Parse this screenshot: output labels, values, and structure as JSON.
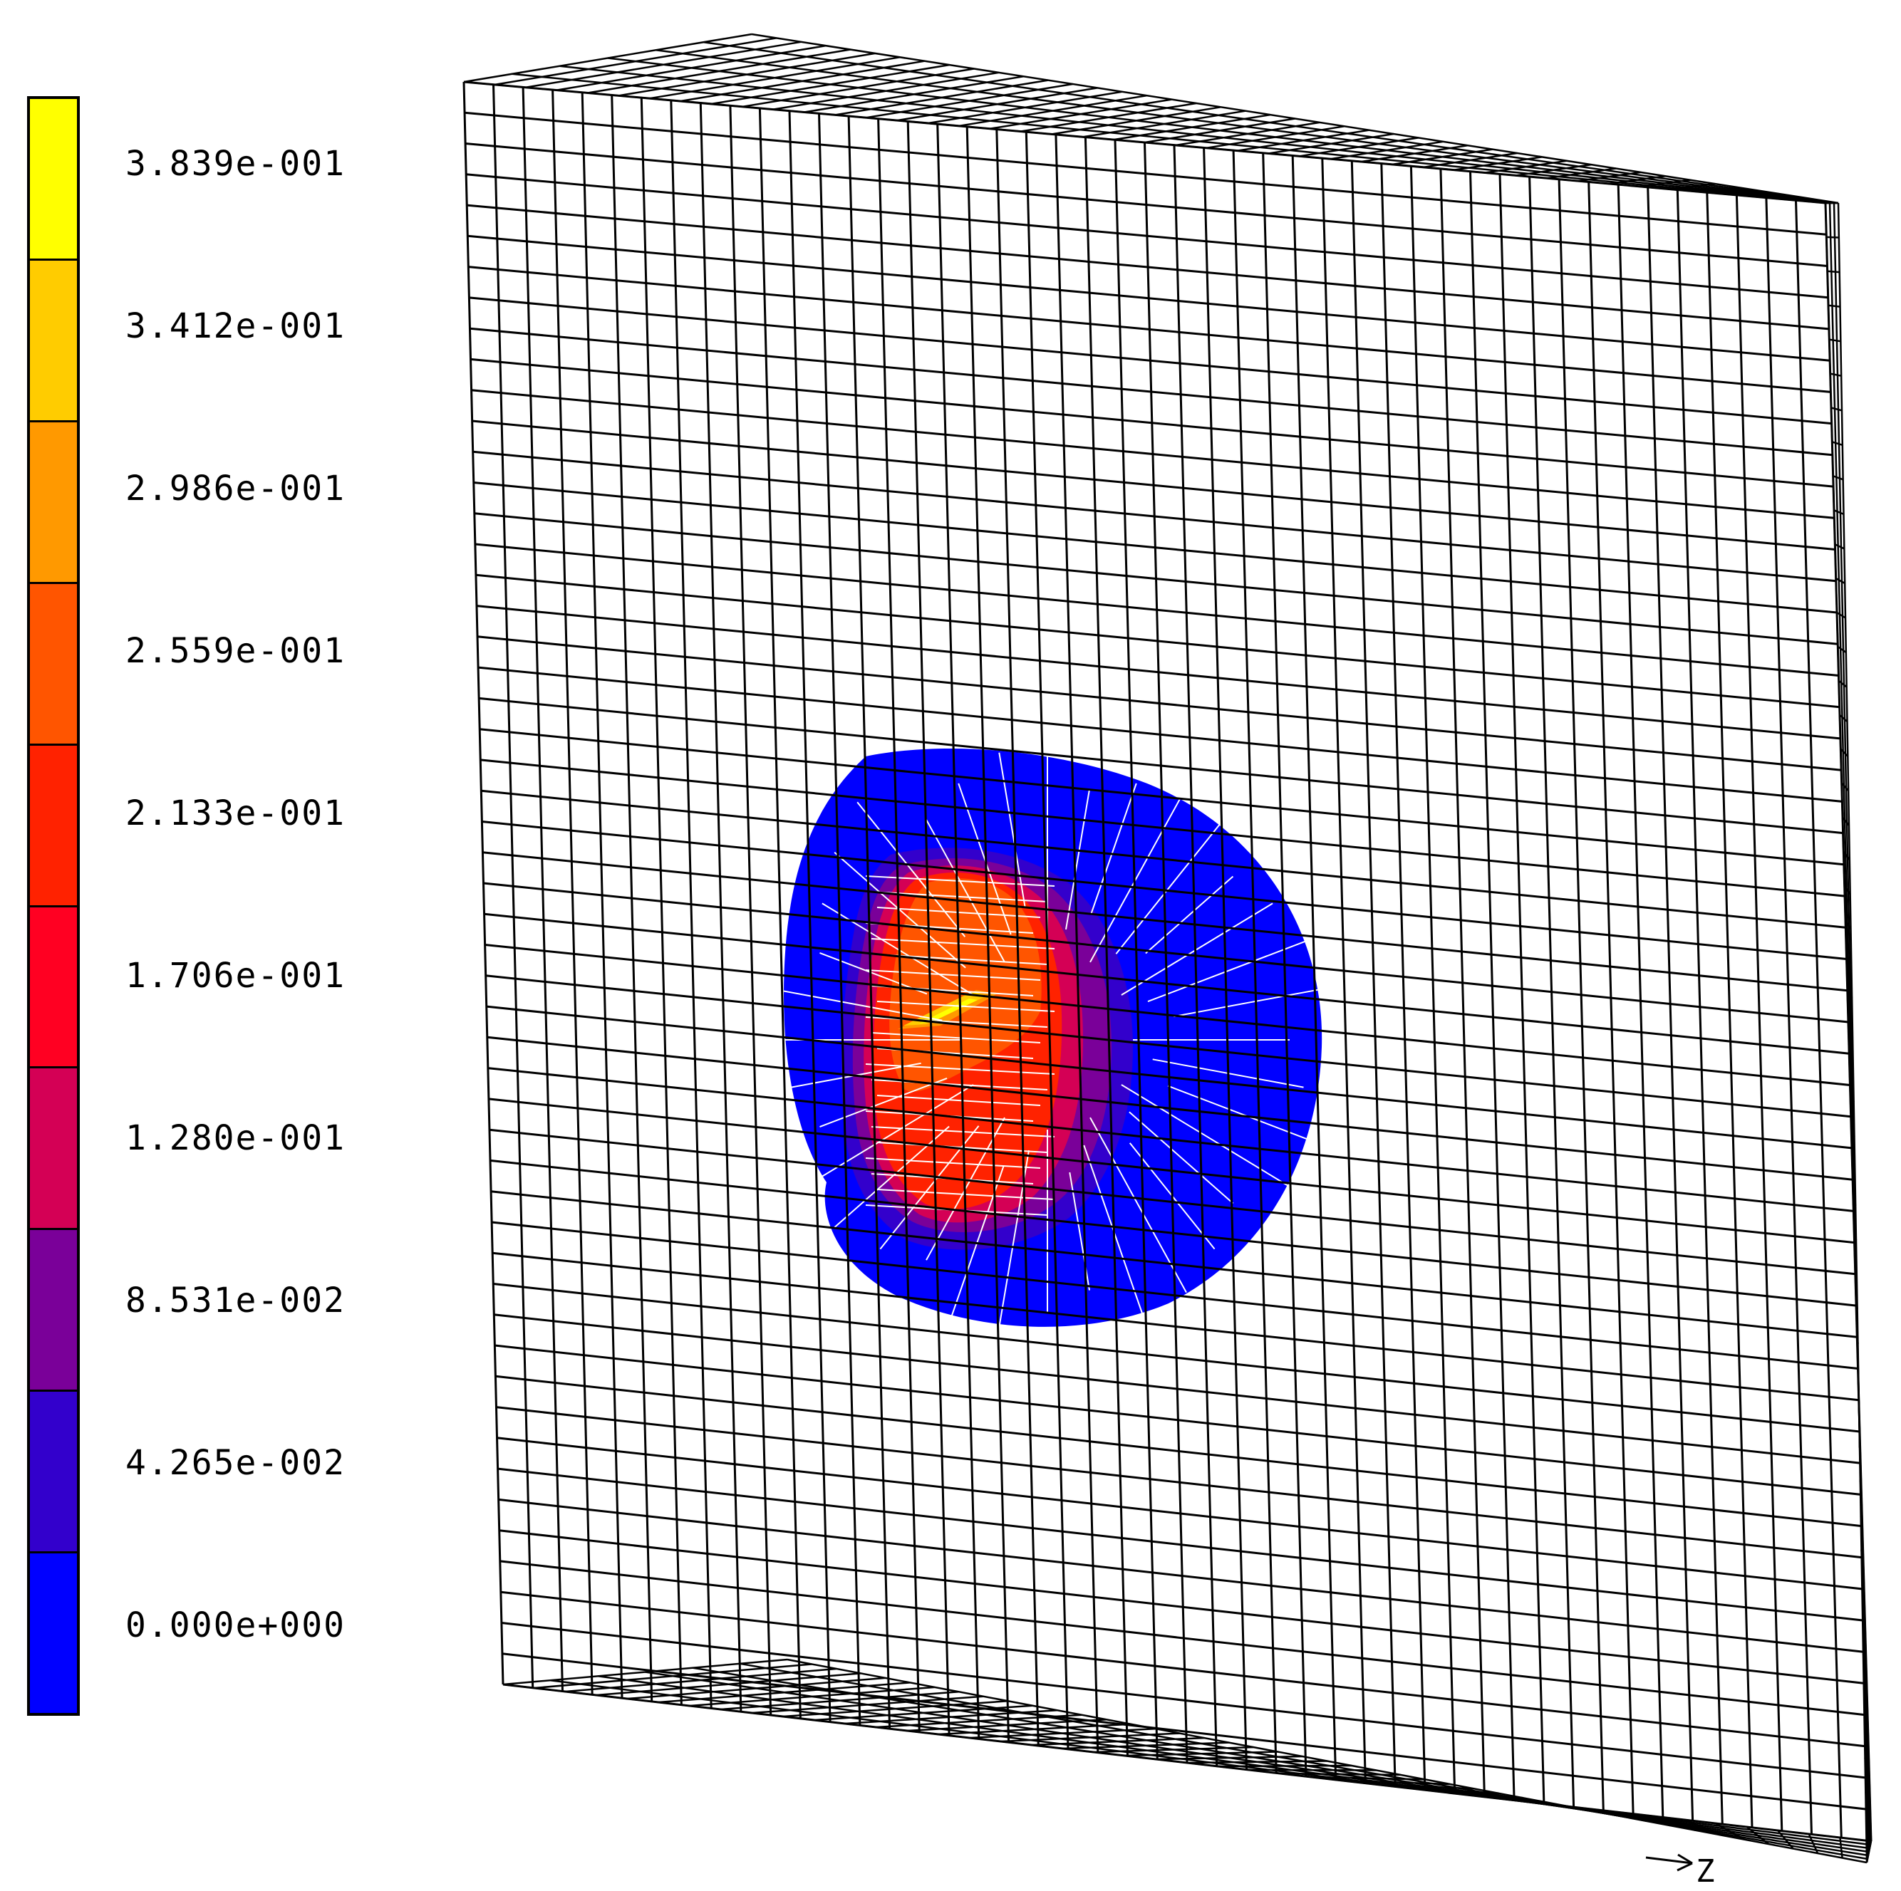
{
  "legend": {
    "entries": [
      {
        "label": "3.839e-001",
        "color": "#ffff00"
      },
      {
        "label": "3.412e-001",
        "color": "#ffcc00"
      },
      {
        "label": "2.986e-001",
        "color": "#ff9900"
      },
      {
        "label": "2.559e-001",
        "color": "#ff5500"
      },
      {
        "label": "2.133e-001",
        "color": "#ff2200"
      },
      {
        "label": "1.706e-001",
        "color": "#ff0022"
      },
      {
        "label": "1.280e-001",
        "color": "#d40055"
      },
      {
        "label": "8.531e-002",
        "color": "#7a0099"
      },
      {
        "label": "4.265e-002",
        "color": "#3300cc"
      },
      {
        "label": "0.000e+000",
        "color": "#0000ff"
      }
    ]
  },
  "axis": {
    "label": "Z"
  },
  "colors": {
    "mesh": "#000000",
    "overlay_lines": "#ffffff",
    "background": "#ffffff"
  }
}
